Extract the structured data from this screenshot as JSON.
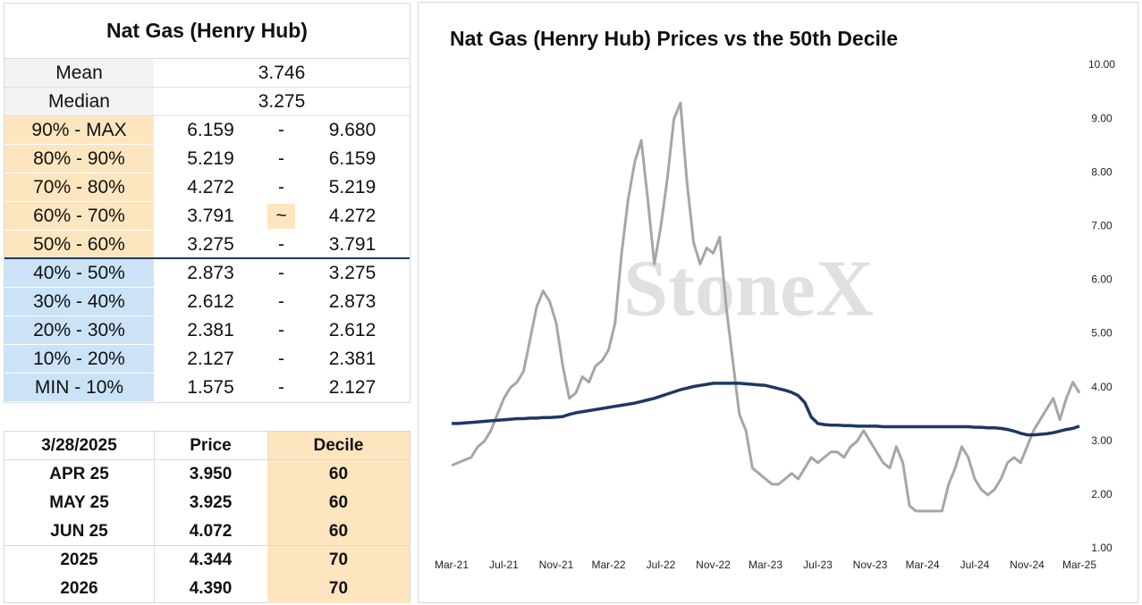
{
  "stats_table": {
    "title": "Nat Gas (Henry Hub)",
    "rows": [
      {
        "label": "Mean",
        "value": "3.746"
      },
      {
        "label": "Median",
        "value": "3.275"
      }
    ],
    "label_color": "#f2f2f2"
  },
  "decile_table": {
    "rows": [
      {
        "range": "90% - MAX",
        "low": "6.159",
        "sep": "-",
        "high": "9.680",
        "color": "#fde6bf"
      },
      {
        "range": "80% - 90%",
        "low": "5.219",
        "sep": "-",
        "high": "6.159",
        "color": "#fde6bf"
      },
      {
        "range": "70% - 80%",
        "low": "4.272",
        "sep": "-",
        "high": "5.219",
        "color": "#fde6bf"
      },
      {
        "range": "60% - 70%",
        "low": "3.791",
        "sep": "~",
        "high": "4.272",
        "color": "#fde6bf",
        "sep_color": "#fde6bf"
      },
      {
        "range": "50% - 60%",
        "low": "3.275",
        "sep": "-",
        "high": "3.791",
        "color": "#fde6bf"
      },
      {
        "range": "40% - 50%",
        "low": "2.873",
        "sep": "-",
        "high": "3.275",
        "color": "#cce3f7"
      },
      {
        "range": "30% - 40%",
        "low": "2.612",
        "sep": "-",
        "high": "2.873",
        "color": "#cce3f7"
      },
      {
        "range": "20% - 30%",
        "low": "2.381",
        "sep": "-",
        "high": "2.612",
        "color": "#cce3f7"
      },
      {
        "range": "10% - 20%",
        "low": "2.127",
        "sep": "-",
        "high": "2.381",
        "color": "#cce3f7"
      },
      {
        "range": "MIN - 10%",
        "low": "1.575",
        "sep": "-",
        "high": "2.127",
        "color": "#cce3f7"
      }
    ]
  },
  "price_table": {
    "header": [
      "3/28/2025",
      "Price",
      "Decile"
    ],
    "rows": [
      [
        "APR 25",
        "3.950",
        "60"
      ],
      [
        "MAY 25",
        "3.925",
        "60"
      ],
      [
        "JUN 25",
        "4.072",
        "60"
      ],
      [
        "2025",
        "4.344",
        "70"
      ],
      [
        "2026",
        "4.390",
        "70"
      ]
    ],
    "decile_color": "#fde6bf"
  },
  "chart_data": {
    "type": "line",
    "title": "Nat Gas (Henry Hub) Prices vs the 50th Decile",
    "watermark": "StoneX",
    "categories": [
      "Mar-21",
      null,
      null,
      null,
      null,
      null,
      null,
      null,
      "Jul-21",
      null,
      null,
      null,
      null,
      null,
      null,
      null,
      "Nov-21",
      null,
      null,
      null,
      null,
      null,
      null,
      null,
      "Mar-22",
      null,
      null,
      null,
      null,
      null,
      null,
      null,
      "Jul-22",
      null,
      null,
      null,
      null,
      null,
      null,
      null,
      "Nov-22",
      null,
      null,
      null,
      null,
      null,
      null,
      null,
      "Mar-23",
      null,
      null,
      null,
      null,
      null,
      null,
      null,
      "Jul-23",
      null,
      null,
      null,
      null,
      null,
      null,
      null,
      "Nov-23",
      null,
      null,
      null,
      null,
      null,
      null,
      null,
      "Mar-24",
      null,
      null,
      null,
      null,
      null,
      null,
      null,
      "Jul-24",
      null,
      null,
      null,
      null,
      null,
      null,
      null,
      "Nov-24",
      null,
      null,
      null,
      null,
      null,
      null,
      null,
      "Mar-25"
    ],
    "series": [
      {
        "color": "#a6a6a6",
        "values": [
          2.55,
          2.6,
          2.65,
          2.7,
          2.9,
          3.0,
          3.2,
          3.5,
          3.8,
          4.0,
          4.1,
          4.3,
          4.9,
          5.5,
          5.8,
          5.6,
          5.2,
          4.4,
          3.8,
          3.9,
          4.2,
          4.1,
          4.4,
          4.5,
          4.7,
          5.2,
          6.5,
          7.5,
          8.2,
          8.6,
          7.5,
          6.3,
          7.0,
          7.9,
          9.0,
          9.3,
          7.8,
          6.7,
          6.3,
          6.6,
          6.5,
          6.8,
          5.5,
          4.5,
          3.5,
          3.2,
          2.5,
          2.4,
          2.3,
          2.2,
          2.2,
          2.3,
          2.4,
          2.3,
          2.5,
          2.7,
          2.6,
          2.7,
          2.8,
          2.8,
          2.7,
          2.9,
          3.0,
          3.2,
          3.0,
          2.8,
          2.6,
          2.5,
          2.9,
          2.6,
          1.8,
          1.7,
          1.7,
          1.7,
          1.7,
          1.7,
          2.2,
          2.5,
          2.9,
          2.7,
          2.3,
          2.1,
          2.0,
          2.1,
          2.3,
          2.6,
          2.7,
          2.6,
          2.9,
          3.2,
          3.4,
          3.6,
          3.8,
          3.4,
          3.8,
          4.1,
          3.9
        ]
      },
      {
        "color": "#1f3864",
        "values": [
          3.33,
          3.33,
          3.34,
          3.35,
          3.36,
          3.37,
          3.38,
          3.39,
          3.4,
          3.41,
          3.42,
          3.42,
          3.43,
          3.43,
          3.44,
          3.44,
          3.45,
          3.46,
          3.5,
          3.53,
          3.55,
          3.57,
          3.59,
          3.61,
          3.63,
          3.65,
          3.67,
          3.69,
          3.71,
          3.74,
          3.77,
          3.8,
          3.84,
          3.88,
          3.92,
          3.96,
          3.99,
          4.02,
          4.04,
          4.06,
          4.08,
          4.08,
          4.08,
          4.08,
          4.08,
          4.07,
          4.06,
          4.05,
          4.04,
          4.01,
          3.98,
          3.95,
          3.91,
          3.85,
          3.72,
          3.45,
          3.33,
          3.31,
          3.3,
          3.3,
          3.29,
          3.29,
          3.28,
          3.28,
          3.28,
          3.28,
          3.27,
          3.27,
          3.27,
          3.27,
          3.27,
          3.27,
          3.27,
          3.27,
          3.27,
          3.27,
          3.27,
          3.27,
          3.27,
          3.27,
          3.26,
          3.26,
          3.25,
          3.25,
          3.24,
          3.22,
          3.19,
          3.15,
          3.12,
          3.12,
          3.13,
          3.14,
          3.16,
          3.19,
          3.22,
          3.24,
          3.28
        ]
      }
    ],
    "ylim": [
      1,
      10
    ],
    "yticks": [
      {
        "value": 1,
        "label": "1.00"
      },
      {
        "value": 2,
        "label": "2.00"
      },
      {
        "value": 3,
        "label": "3.00"
      },
      {
        "value": 4,
        "label": "4.00"
      },
      {
        "value": 5,
        "label": "5.00"
      },
      {
        "value": 6,
        "label": "6.00"
      },
      {
        "value": 7,
        "label": "7.00"
      },
      {
        "value": 8,
        "label": "8.00"
      },
      {
        "value": 9,
        "label": "9.00"
      },
      {
        "value": 10,
        "label": "10.00"
      }
    ],
    "grid": false
  }
}
